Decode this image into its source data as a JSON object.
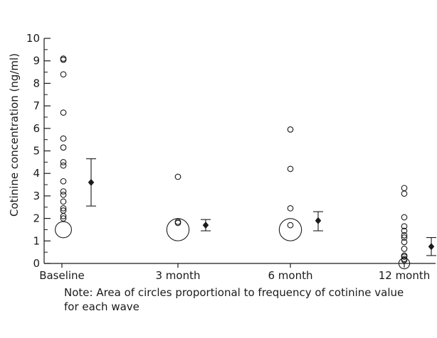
{
  "chart_data": {
    "type": "scatter",
    "title": "",
    "xlabel": "",
    "ylabel": "Cotinine concentration (ng/ml)",
    "ylim": [
      0,
      10
    ],
    "yticks": [
      0,
      1,
      2,
      3,
      4,
      5,
      6,
      7,
      8,
      9,
      10
    ],
    "categories": [
      "Baseline",
      "3 month",
      "6 month",
      "12 month"
    ],
    "individual_values": [
      {
        "wave": "Baseline",
        "points": [
          {
            "y": 9.1,
            "freq": 1
          },
          {
            "y": 9.05,
            "freq": 1
          },
          {
            "y": 8.4,
            "freq": 1
          },
          {
            "y": 6.7,
            "freq": 1
          },
          {
            "y": 5.55,
            "freq": 1
          },
          {
            "y": 5.15,
            "freq": 1
          },
          {
            "y": 4.5,
            "freq": 1
          },
          {
            "y": 4.35,
            "freq": 1
          },
          {
            "y": 3.65,
            "freq": 1
          },
          {
            "y": 3.2,
            "freq": 1
          },
          {
            "y": 3.05,
            "freq": 1
          },
          {
            "y": 2.75,
            "freq": 1
          },
          {
            "y": 2.45,
            "freq": 1
          },
          {
            "y": 2.35,
            "freq": 1
          },
          {
            "y": 2.1,
            "freq": 1
          },
          {
            "y": 2.0,
            "freq": 1
          },
          {
            "y": 1.5,
            "freq": 9
          }
        ]
      },
      {
        "wave": "3 month",
        "points": [
          {
            "y": 3.85,
            "freq": 1
          },
          {
            "y": 1.85,
            "freq": 1
          },
          {
            "y": 1.8,
            "freq": 1
          },
          {
            "y": 1.5,
            "freq": 17
          }
        ]
      },
      {
        "wave": "6 month",
        "points": [
          {
            "y": 5.95,
            "freq": 1
          },
          {
            "y": 4.2,
            "freq": 1
          },
          {
            "y": 2.45,
            "freq": 1
          },
          {
            "y": 1.7,
            "freq": 1
          },
          {
            "y": 1.5,
            "freq": 17
          }
        ]
      },
      {
        "wave": "12 month",
        "points": [
          {
            "y": 3.35,
            "freq": 1
          },
          {
            "y": 3.1,
            "freq": 1
          },
          {
            "y": 2.05,
            "freq": 1
          },
          {
            "y": 1.65,
            "freq": 1
          },
          {
            "y": 1.45,
            "freq": 1
          },
          {
            "y": 1.25,
            "freq": 1
          },
          {
            "y": 1.15,
            "freq": 1
          },
          {
            "y": 0.95,
            "freq": 1
          },
          {
            "y": 0.65,
            "freq": 1
          },
          {
            "y": 0.35,
            "freq": 1
          },
          {
            "y": 0.3,
            "freq": 1
          },
          {
            "y": 0.2,
            "freq": 1
          },
          {
            "y": 0.15,
            "freq": 1
          },
          {
            "y": 0.0,
            "freq": 4
          }
        ]
      }
    ],
    "summary": [
      {
        "wave": "Baseline",
        "mean": 3.6,
        "lower": 2.55,
        "upper": 4.65
      },
      {
        "wave": "3 month",
        "mean": 1.7,
        "lower": 1.45,
        "upper": 1.95
      },
      {
        "wave": "6 month",
        "mean": 1.9,
        "lower": 1.45,
        "upper": 2.3
      },
      {
        "wave": "12 month",
        "mean": 0.75,
        "lower": 0.35,
        "upper": 1.15
      }
    ],
    "marker_styles": {
      "individual": "open circle",
      "summary": "filled diamond with error bars"
    },
    "note": "Note: Area of circles proportional to frequency of cotinine value for each wave",
    "colors": {
      "ink": "#1a1a1a",
      "background": "#ffffff"
    }
  }
}
